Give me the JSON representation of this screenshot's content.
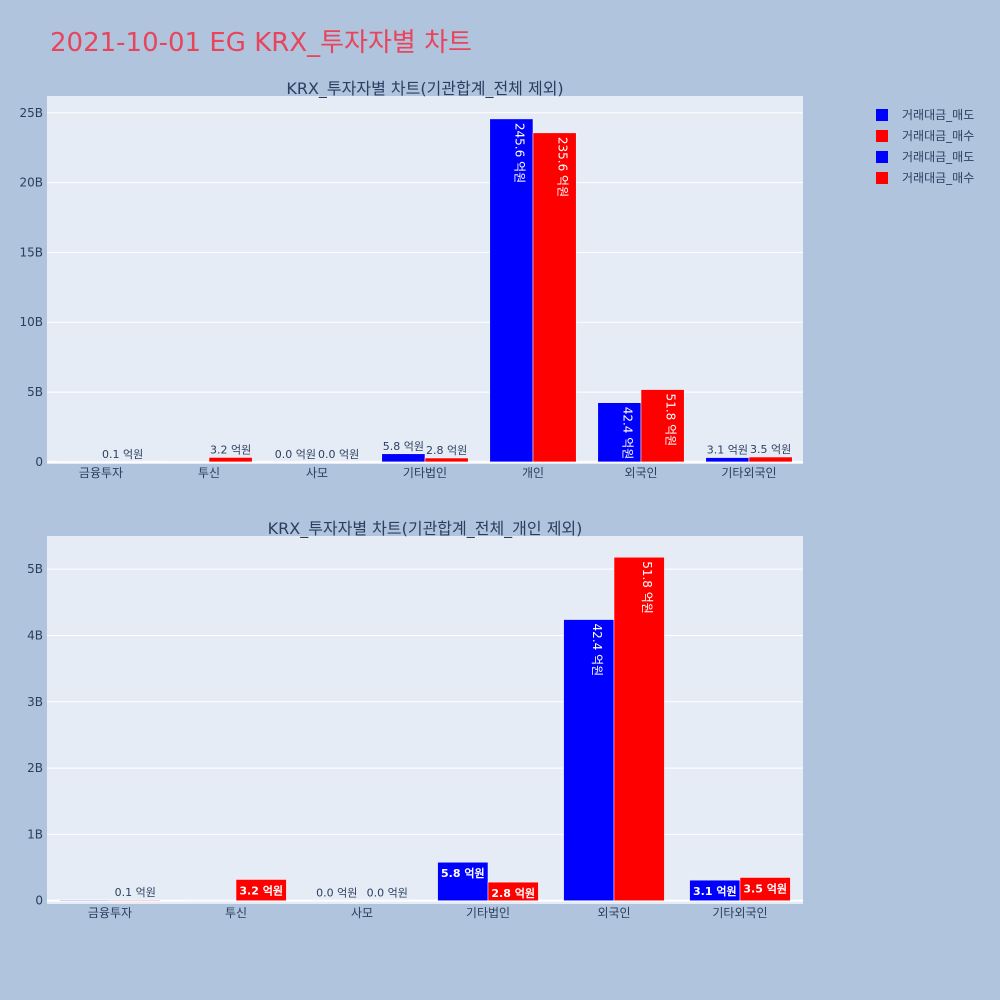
{
  "page": {
    "title": "2021-10-01 EG KRX_투자자별 차트"
  },
  "legend": [
    {
      "label": "거래대금_매도",
      "color": "#0000ff"
    },
    {
      "label": "거래대금_매수",
      "color": "#ff0000"
    },
    {
      "label": "거래대금_매도",
      "color": "#0000ff"
    },
    {
      "label": "거래대금_매수",
      "color": "#ff0000"
    }
  ],
  "chart_data": [
    {
      "type": "bar",
      "title": "KRX_투자자별 차트(기관합계_전체 제외)",
      "categories": [
        "금융투자",
        "투신",
        "사모",
        "기타법인",
        "개인",
        "외국인",
        "기타외국인"
      ],
      "yticks": [
        0,
        5,
        10,
        15,
        20,
        25
      ],
      "ytick_labels": [
        "0",
        "5B",
        "10B",
        "15B",
        "20B",
        "25B"
      ],
      "ylim": [
        -0.15,
        26.2
      ],
      "unit": "B",
      "series": [
        {
          "name": "거래대금_매도",
          "color": "#0000ff",
          "values": [
            0.01,
            0.0,
            0.0,
            0.58,
            24.56,
            4.24,
            0.31
          ],
          "labels": [
            "",
            "",
            "0.0 억원",
            "5.8 억원",
            "245.6 억원",
            "42.4 억원",
            "3.1 억원"
          ]
        },
        {
          "name": "거래대금_매수",
          "color": "#ff0000",
          "values": [
            0.01,
            0.32,
            0.0,
            0.28,
            23.56,
            5.18,
            0.35
          ],
          "labels": [
            "0.1 억원",
            "3.2 억원",
            "0.0 억원",
            "2.8 억원",
            "235.6 억원",
            "51.8 억원",
            "3.5 억원"
          ]
        }
      ]
    },
    {
      "type": "bar",
      "title": "KRX_투자자별 차트(기관합계_전체_개인 제외)",
      "categories": [
        "금융투자",
        "투신",
        "사모",
        "기타법인",
        "외국인",
        "기타외국인"
      ],
      "yticks": [
        0,
        1,
        2,
        3,
        4,
        5
      ],
      "ytick_labels": [
        "0",
        "1B",
        "2B",
        "3B",
        "4B",
        "5B"
      ],
      "ylim": [
        -0.05,
        5.5
      ],
      "unit": "B",
      "series": [
        {
          "name": "거래대금_매도",
          "color": "#0000ff",
          "values": [
            0.01,
            0.0,
            0.0,
            0.58,
            4.24,
            0.31
          ],
          "labels": [
            "",
            "",
            "0.0 억원",
            "5.8 억원",
            "42.4 억원",
            "3.1 억원"
          ]
        },
        {
          "name": "거래대금_매수",
          "color": "#ff0000",
          "values": [
            0.01,
            0.32,
            0.0,
            0.28,
            5.18,
            0.35
          ],
          "labels": [
            "0.1 억원",
            "3.2 억원",
            "0.0 억원",
            "2.8 억원",
            "51.8 억원",
            "3.5 억원"
          ]
        }
      ]
    }
  ]
}
